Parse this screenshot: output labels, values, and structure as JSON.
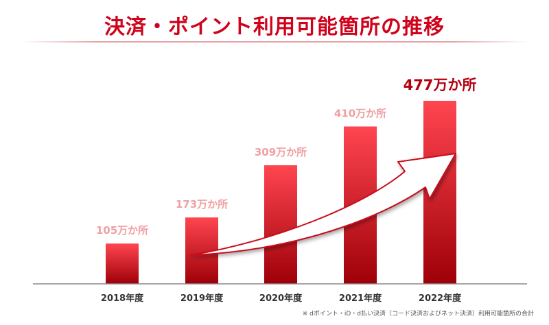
{
  "header": {
    "title": "決済・ポイント利用可能箇所の推移"
  },
  "footnote": "※ dポイント・iD・d払い決済（コード決済およびネット決済）利用可能箇所の合計",
  "colors": {
    "title": "#d0021b",
    "bar_top": "#ff4550",
    "bar_bottom": "#9e0008",
    "label_light": "#f0a0a2",
    "label_highlight": "#b3000f",
    "axis": "#888888",
    "arrow_fill": "#ffffff",
    "arrow_stroke": "#c8101e"
  },
  "chart_data": {
    "type": "bar",
    "categories": [
      "2018年度",
      "2019年度",
      "2020年度",
      "2021年度",
      "2022年度"
    ],
    "values": [
      105,
      173,
      309,
      410,
      477
    ],
    "data_labels": [
      "105万か所",
      "173万か所",
      "309万か所",
      "410万か所",
      "477万か所"
    ],
    "highlight_index": 4,
    "title": "決済・ポイント利用可能箇所の推移",
    "xlabel": "",
    "ylabel": "",
    "ylim": [
      0,
      477
    ],
    "grid": false,
    "legend": "none",
    "annotation": "upward-trend-arrow"
  }
}
